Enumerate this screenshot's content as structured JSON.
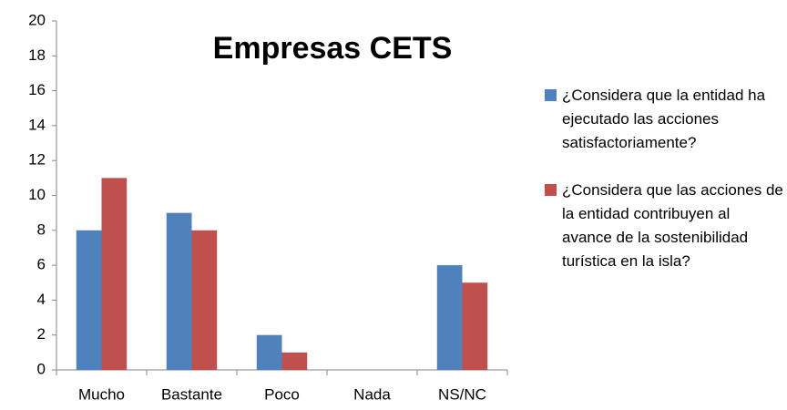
{
  "chart_data": {
    "type": "bar",
    "title": "Empresas CETS",
    "categories": [
      "Mucho",
      "Bastante",
      "Poco",
      "Nada",
      "NS/NC"
    ],
    "series": [
      {
        "name": "¿Considera que la entidad ha ejecutado las acciones satisfactoriamente?",
        "color": "#4f81bd",
        "values": [
          8,
          9,
          2,
          0,
          6
        ]
      },
      {
        "name": "¿Considera que las acciones de la entidad contribuyen al avance de la sostenibilidad turística en la isla?",
        "color": "#c0504d",
        "values": [
          11,
          8,
          1,
          0,
          5
        ]
      }
    ],
    "ylim": [
      0,
      20
    ],
    "yticks": [
      0,
      2,
      4,
      6,
      8,
      10,
      12,
      14,
      16,
      18,
      20
    ],
    "grid": false,
    "legend": "right"
  }
}
